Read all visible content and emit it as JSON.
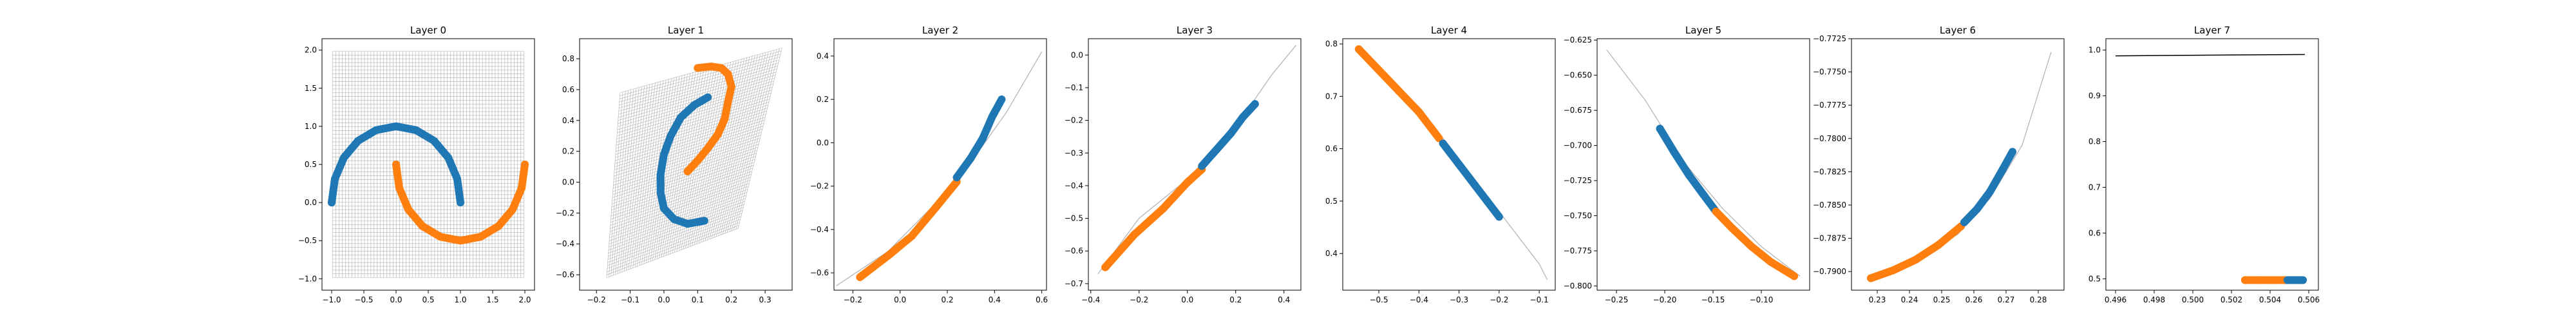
{
  "figure": {
    "title": "",
    "colors": {
      "class0": "#1f77b4",
      "class1": "#ff7f0e",
      "grid": "#b0b0b0",
      "curve": "#b0b0b0",
      "axis": "#000000"
    }
  },
  "chart_data": [
    {
      "type": "scatter",
      "title": "Layer 0",
      "xlabel": "",
      "ylabel": "",
      "xlim": [
        -1.15,
        2.15
      ],
      "ylim": [
        -1.15,
        2.15
      ],
      "xticks": [
        -1.0,
        -0.5,
        0.0,
        0.5,
        1.0,
        1.5,
        2.0
      ],
      "xtick_labels": [
        "−1.0",
        "−0.5",
        "0.0",
        "0.5",
        "1.0",
        "1.5",
        "2.0"
      ],
      "yticks": [
        -1.0,
        -0.5,
        0.0,
        0.5,
        1.0,
        1.5,
        2.0
      ],
      "ytick_labels": [
        "−1.0",
        "−0.5",
        "0.0",
        "0.5",
        "1.0",
        "1.5",
        "2.0"
      ],
      "grid": "warped-mesh",
      "series": [
        {
          "color": "class0",
          "points": [
            [
              -1.0,
              0.0
            ],
            [
              -0.95,
              0.31
            ],
            [
              -0.81,
              0.59
            ],
            [
              -0.59,
              0.81
            ],
            [
              -0.31,
              0.95
            ],
            [
              0.0,
              1.0
            ],
            [
              0.31,
              0.95
            ],
            [
              0.59,
              0.81
            ],
            [
              0.81,
              0.59
            ],
            [
              0.95,
              0.31
            ],
            [
              1.0,
              0.0
            ]
          ]
        },
        {
          "color": "class1",
          "points": [
            [
              0.0,
              0.5
            ],
            [
              0.05,
              0.19
            ],
            [
              0.19,
              -0.09
            ],
            [
              0.41,
              -0.31
            ],
            [
              0.69,
              -0.45
            ],
            [
              1.0,
              -0.5
            ],
            [
              1.31,
              -0.45
            ],
            [
              1.59,
              -0.31
            ],
            [
              1.81,
              -0.09
            ],
            [
              1.95,
              0.19
            ],
            [
              2.0,
              0.5
            ]
          ]
        }
      ]
    },
    {
      "type": "scatter",
      "title": "Layer 1",
      "xlabel": "",
      "ylabel": "",
      "xlim": [
        -0.25,
        0.38
      ],
      "ylim": [
        -0.7,
        0.93
      ],
      "xticks": [
        -0.2,
        -0.1,
        0.0,
        0.1,
        0.2,
        0.3
      ],
      "xtick_labels": [
        "−0.2",
        "−0.1",
        "0.0",
        "0.1",
        "0.2",
        "0.3"
      ],
      "yticks": [
        -0.6,
        -0.4,
        -0.2,
        0.0,
        0.2,
        0.4,
        0.6,
        0.8
      ],
      "ytick_labels": [
        "−0.6",
        "−0.4",
        "−0.2",
        "0.0",
        "0.2",
        "0.4",
        "0.6",
        "0.8"
      ],
      "grid": "warped-mesh",
      "series": [
        {
          "color": "class0",
          "points": [
            [
              0.13,
              0.55
            ],
            [
              0.09,
              0.5
            ],
            [
              0.05,
              0.42
            ],
            [
              0.02,
              0.3
            ],
            [
              0.0,
              0.18
            ],
            [
              -0.01,
              0.05
            ],
            [
              -0.01,
              -0.07
            ],
            [
              0.0,
              -0.17
            ],
            [
              0.03,
              -0.24
            ],
            [
              0.07,
              -0.27
            ],
            [
              0.12,
              -0.25
            ]
          ]
        },
        {
          "color": "class1",
          "points": [
            [
              0.07,
              0.07
            ],
            [
              0.1,
              0.14
            ],
            [
              0.13,
              0.22
            ],
            [
              0.16,
              0.31
            ],
            [
              0.18,
              0.41
            ],
            [
              0.19,
              0.52
            ],
            [
              0.2,
              0.62
            ],
            [
              0.19,
              0.7
            ],
            [
              0.17,
              0.74
            ],
            [
              0.14,
              0.75
            ],
            [
              0.1,
              0.74
            ]
          ]
        }
      ]
    },
    {
      "type": "scatter",
      "title": "Layer 2",
      "xlabel": "",
      "ylabel": "",
      "xlim": [
        -0.28,
        0.62
      ],
      "ylim": [
        -0.68,
        0.48
      ],
      "xticks": [
        -0.2,
        0.0,
        0.2,
        0.4,
        0.6
      ],
      "xtick_labels": [
        "−0.2",
        "0.0",
        "0.2",
        "0.4",
        "0.6"
      ],
      "yticks": [
        -0.6,
        -0.4,
        -0.2,
        0.0,
        0.2,
        0.4
      ],
      "ytick_labels": [
        "−0.6",
        "−0.4",
        "−0.2",
        "0.0",
        "0.2",
        "0.4"
      ],
      "grid": "curve",
      "curve": [
        [
          -0.27,
          -0.66
        ],
        [
          -0.05,
          -0.5
        ],
        [
          0.15,
          -0.28
        ],
        [
          0.3,
          -0.09
        ],
        [
          0.45,
          0.14
        ],
        [
          0.6,
          0.42
        ]
      ],
      "series": [
        {
          "color": "class1",
          "points": [
            [
              -0.17,
              -0.62
            ],
            [
              -0.05,
              -0.52
            ],
            [
              0.05,
              -0.43
            ],
            [
              0.15,
              -0.3
            ],
            [
              0.24,
              -0.18
            ]
          ]
        },
        {
          "color": "class0",
          "points": [
            [
              0.24,
              -0.16
            ],
            [
              0.3,
              -0.07
            ],
            [
              0.35,
              0.02
            ],
            [
              0.39,
              0.12
            ],
            [
              0.43,
              0.2
            ]
          ]
        }
      ]
    },
    {
      "type": "scatter",
      "title": "Layer 3",
      "xlabel": "",
      "ylabel": "",
      "xlim": [
        -0.41,
        0.47
      ],
      "ylim": [
        -0.72,
        0.05
      ],
      "xticks": [
        -0.4,
        -0.2,
        0.0,
        0.2,
        0.4
      ],
      "xtick_labels": [
        "−0.4",
        "−0.2",
        "0.0",
        "0.2",
        "0.4"
      ],
      "yticks": [
        -0.7,
        -0.6,
        -0.5,
        -0.4,
        -0.3,
        -0.2,
        -0.1,
        0.0
      ],
      "ytick_labels": [
        "−0.7",
        "−0.6",
        "−0.5",
        "−0.4",
        "−0.3",
        "−0.2",
        "−0.1",
        "0.0"
      ],
      "grid": "curve",
      "curve": [
        [
          -0.37,
          -0.67
        ],
        [
          -0.2,
          -0.5
        ],
        [
          0.0,
          -0.38
        ],
        [
          0.2,
          -0.22
        ],
        [
          0.35,
          -0.06
        ],
        [
          0.45,
          0.03
        ]
      ],
      "series": [
        {
          "color": "class1",
          "points": [
            [
              -0.34,
              -0.65
            ],
            [
              -0.22,
              -0.55
            ],
            [
              -0.1,
              -0.47
            ],
            [
              0.0,
              -0.39
            ],
            [
              0.06,
              -0.35
            ]
          ]
        },
        {
          "color": "class0",
          "points": [
            [
              0.06,
              -0.34
            ],
            [
              0.12,
              -0.29
            ],
            [
              0.18,
              -0.24
            ],
            [
              0.23,
              -0.19
            ],
            [
              0.28,
              -0.15
            ]
          ]
        }
      ]
    },
    {
      "type": "scatter",
      "title": "Layer 4",
      "xlabel": "",
      "ylabel": "",
      "xlim": [
        -0.59,
        -0.06
      ],
      "ylim": [
        0.33,
        0.81
      ],
      "xticks": [
        -0.5,
        -0.4,
        -0.3,
        -0.2,
        -0.1
      ],
      "xtick_labels": [
        "−0.5",
        "−0.4",
        "−0.3",
        "−0.2",
        "−0.1"
      ],
      "yticks": [
        0.4,
        0.5,
        0.6,
        0.7,
        0.8
      ],
      "ytick_labels": [
        "0.4",
        "0.5",
        "0.6",
        "0.7",
        "0.8"
      ],
      "grid": "curve",
      "curve": [
        [
          -0.56,
          0.79
        ],
        [
          -0.4,
          0.68
        ],
        [
          -0.25,
          0.53
        ],
        [
          -0.1,
          0.38
        ],
        [
          -0.08,
          0.35
        ]
      ],
      "series": [
        {
          "color": "class1",
          "points": [
            [
              -0.55,
              0.79
            ],
            [
              -0.5,
              0.75
            ],
            [
              -0.45,
              0.71
            ],
            [
              -0.4,
              0.67
            ],
            [
              -0.35,
              0.62
            ]
          ]
        },
        {
          "color": "class0",
          "points": [
            [
              -0.34,
              0.61
            ],
            [
              -0.3,
              0.57
            ],
            [
              -0.26,
              0.53
            ],
            [
              -0.23,
              0.5
            ],
            [
              -0.2,
              0.47
            ]
          ]
        }
      ]
    },
    {
      "type": "scatter",
      "title": "Layer 5",
      "xlabel": "",
      "ylabel": "",
      "xlim": [
        -0.27,
        -0.05
      ],
      "ylim": [
        -0.803,
        -0.624
      ],
      "xticks": [
        -0.25,
        -0.2,
        -0.15,
        -0.1
      ],
      "xtick_labels": [
        "−0.25",
        "−0.20",
        "−0.15",
        "−0.10"
      ],
      "yticks": [
        -0.625,
        -0.65,
        -0.675,
        -0.7,
        -0.725,
        -0.75,
        -0.775,
        -0.8
      ],
      "ytick_labels": [
        "−0.625",
        "−0.650",
        "−0.675",
        "−0.700",
        "−0.725",
        "−0.750",
        "−0.775",
        "−0.800"
      ],
      "grid": "curve",
      "curve": [
        [
          -0.26,
          -0.632
        ],
        [
          -0.22,
          -0.668
        ],
        [
          -0.18,
          -0.712
        ],
        [
          -0.14,
          -0.745
        ],
        [
          -0.1,
          -0.772
        ],
        [
          -0.06,
          -0.793
        ]
      ],
      "series": [
        {
          "color": "class0",
          "points": [
            [
              -0.205,
              -0.688
            ],
            [
              -0.19,
              -0.705
            ],
            [
              -0.175,
              -0.721
            ],
            [
              -0.16,
              -0.735
            ],
            [
              -0.148,
              -0.746
            ]
          ]
        },
        {
          "color": "class1",
          "points": [
            [
              -0.147,
              -0.747
            ],
            [
              -0.13,
              -0.759
            ],
            [
              -0.11,
              -0.772
            ],
            [
              -0.09,
              -0.783
            ],
            [
              -0.066,
              -0.793
            ]
          ]
        }
      ]
    },
    {
      "type": "scatter",
      "title": "Layer 6",
      "xlabel": "",
      "ylabel": "",
      "xlim": [
        0.222,
        0.288
      ],
      "ylim": [
        -0.7914,
        -0.7725
      ],
      "xticks": [
        0.23,
        0.24,
        0.25,
        0.26,
        0.27,
        0.28
      ],
      "xtick_labels": [
        "0.23",
        "0.24",
        "0.25",
        "0.26",
        "0.27",
        "0.28"
      ],
      "yticks": [
        -0.7725,
        -0.775,
        -0.7775,
        -0.78,
        -0.7825,
        -0.785,
        -0.7875,
        -0.79
      ],
      "ytick_labels": [
        "−0.7725",
        "−0.7750",
        "−0.7775",
        "−0.7800",
        "−0.7825",
        "−0.7850",
        "−0.7875",
        "−0.7900"
      ],
      "grid": "curve",
      "curve": [
        [
          0.228,
          -0.7905
        ],
        [
          0.24,
          -0.7895
        ],
        [
          0.255,
          -0.7872
        ],
        [
          0.265,
          -0.7845
        ],
        [
          0.275,
          -0.7805
        ],
        [
          0.284,
          -0.7735
        ]
      ],
      "series": [
        {
          "color": "class1",
          "points": [
            [
              0.228,
              -0.7905
            ],
            [
              0.235,
              -0.7899
            ],
            [
              0.242,
              -0.7891
            ],
            [
              0.249,
              -0.788
            ],
            [
              0.256,
              -0.7866
            ]
          ]
        },
        {
          "color": "class0",
          "points": [
            [
              0.257,
              -0.7863
            ],
            [
              0.261,
              -0.7853
            ],
            [
              0.265,
              -0.784
            ],
            [
              0.269,
              -0.7823
            ],
            [
              0.272,
              -0.781
            ]
          ]
        }
      ]
    },
    {
      "type": "scatter",
      "title": "Layer 7",
      "xlabel": "",
      "ylabel": "",
      "xlim": [
        0.4955,
        0.5065
      ],
      "ylim": [
        0.475,
        1.025
      ],
      "xticks": [
        0.496,
        0.498,
        0.5,
        0.502,
        0.504,
        0.506
      ],
      "xtick_labels": [
        "0.496",
        "0.498",
        "0.500",
        "0.502",
        "0.504",
        "0.506"
      ],
      "yticks": [
        0.5,
        0.6,
        0.7,
        0.8,
        0.9,
        1.0
      ],
      "ytick_labels": [
        "0.5",
        "0.6",
        "0.7",
        "0.8",
        "0.9",
        "1.0"
      ],
      "grid": "line",
      "curve": [
        [
          0.496,
          0.9875
        ],
        [
          0.5058,
          0.9905
        ]
      ],
      "series": [
        {
          "color": "class1",
          "points": [
            [
              0.5027,
              0.497
            ],
            [
              0.5034,
              0.497
            ],
            [
              0.5041,
              0.497
            ],
            [
              0.5048,
              0.497
            ]
          ]
        },
        {
          "color": "class0",
          "points": [
            [
              0.5049,
              0.497
            ],
            [
              0.5052,
              0.497
            ],
            [
              0.5055,
              0.497
            ],
            [
              0.5057,
              0.497
            ]
          ]
        }
      ]
    }
  ]
}
